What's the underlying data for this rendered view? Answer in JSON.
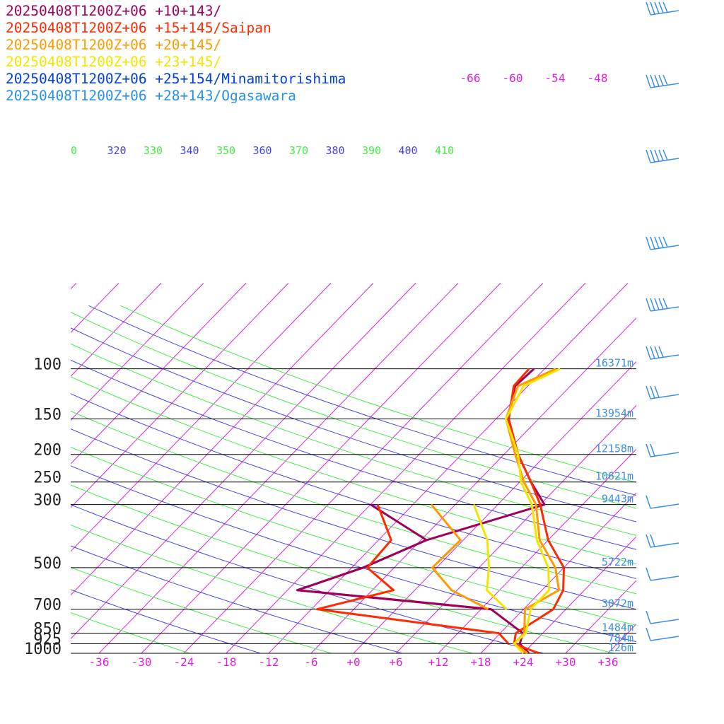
{
  "chart_data": {
    "type": "line",
    "title": "",
    "legend": [
      {
        "label": "20250408T1200Z+06 +10+143/",
        "color": "#a0005a"
      },
      {
        "label": "20250408T1200Z+06 +15+145/Saipan",
        "color": "#ff2a00"
      },
      {
        "label": "20250408T1200Z+06 +20+145/",
        "color": "#ff9a00"
      },
      {
        "label": "20250408T1200Z+06 +23+145/",
        "color": "#f2e600"
      },
      {
        "label": "20250408T1200Z+06 +25+154/Minamitorishima",
        "color": "#0040e0"
      },
      {
        "label": "20250408T1200Z+06 +28+143/Ogasawara",
        "color": "#2890f0"
      }
    ],
    "pressure_levels": [
      {
        "p": 100,
        "label": "100",
        "height": "16371m"
      },
      {
        "p": 150,
        "label": "150",
        "height": "13954m"
      },
      {
        "p": 200,
        "label": "200",
        "height": "12158m"
      },
      {
        "p": 250,
        "label": "250",
        "height": "10621m"
      },
      {
        "p": 300,
        "label": "300",
        "height": "9443m"
      },
      {
        "p": 500,
        "label": "500",
        "height": "5722m"
      },
      {
        "p": 700,
        "label": "700",
        "height": "3072m"
      },
      {
        "p": 850,
        "label": "850",
        "height": "1484m"
      },
      {
        "p": 925,
        "label": "925",
        "height": "784m"
      },
      {
        "p": 1000,
        "label": "1000",
        "height": "126m"
      }
    ],
    "x_ticks": [
      "-36",
      "-30",
      "-24",
      "-18",
      "-12",
      "-6",
      "+0",
      "+6",
      "+12",
      "+18",
      "+24",
      "+30",
      "+36"
    ],
    "x_tick_values": [
      -36,
      -30,
      -24,
      -18,
      -12,
      -6,
      0,
      6,
      12,
      18,
      24,
      30,
      36
    ],
    "upper_isotherm_labels": [
      "-66",
      "-60",
      "-54",
      "-48"
    ],
    "theta_labels": [
      {
        "text": "0",
        "color": "#44ee44"
      },
      {
        "text": "320",
        "color": "#4444ee"
      },
      {
        "text": "330",
        "color": "#44ee44"
      },
      {
        "text": "340",
        "color": "#4444ee"
      },
      {
        "text": "350",
        "color": "#44ee44"
      },
      {
        "text": "360",
        "color": "#4444ee"
      },
      {
        "text": "370",
        "color": "#44ee44"
      },
      {
        "text": "380",
        "color": "#4444ee"
      },
      {
        "text": "390",
        "color": "#44ee44"
      },
      {
        "text": "400",
        "color": "#4444ee"
      },
      {
        "text": "410",
        "color": "#44ee44"
      }
    ],
    "colors": {
      "isotherm": "#e020e0",
      "theta_green": "#44ee44",
      "theta_blue": "#4444ee",
      "height": "#3a8ee8",
      "pressure_label": "#222222"
    },
    "series": [
      {
        "name": "20250408T1200Z+06 +10+143/",
        "temperature": [
          [
            -13.5,
            100
          ],
          [
            -13.8,
            115
          ],
          [
            -10.4,
            150
          ],
          [
            -4,
            200
          ],
          [
            1.6,
            250
          ],
          [
            6.6,
            300
          ],
          [
            -5.2,
            400
          ],
          [
            -10.4,
            500
          ],
          [
            -16.6,
            600
          ],
          [
            13.4,
            700
          ],
          [
            21.2,
            850
          ],
          [
            22.2,
            925
          ],
          [
            24.8,
            1000
          ]
        ],
        "dewpoint": [
          [
            -18,
            300
          ],
          [
            -5.2,
            400
          ],
          [
            -10.4,
            500
          ],
          [
            -16.6,
            600
          ],
          [
            13.4,
            700
          ]
        ]
      },
      {
        "name": "20250408T1200Z+06 +15+145/Saipan",
        "temperature": [
          [
            -14.2,
            100
          ],
          [
            -14,
            115
          ],
          [
            -10.2,
            150
          ],
          [
            -4,
            200
          ],
          [
            1.6,
            250
          ],
          [
            6,
            300
          ],
          [
            12,
            400
          ],
          [
            18,
            500
          ],
          [
            21,
            600
          ],
          [
            22.2,
            700
          ],
          [
            20.2,
            850
          ],
          [
            21.4,
            925
          ],
          [
            26.2,
            1000
          ]
        ],
        "dewpoint": [
          [
            -17,
            300
          ],
          [
            -10.2,
            400
          ],
          [
            -9.8,
            500
          ],
          [
            -3,
            600
          ],
          [
            -11.2,
            700
          ],
          [
            17.8,
            850
          ],
          [
            20.6,
            925
          ]
        ]
      },
      {
        "name": "20250408T1200Z+06 +20+145/",
        "temperature": [
          [
            -10.4,
            100
          ],
          [
            -13.4,
            115
          ],
          [
            -10.6,
            150
          ],
          [
            -4.4,
            200
          ],
          [
            0.6,
            250
          ],
          [
            5.4,
            300
          ],
          [
            10.8,
            400
          ],
          [
            16.8,
            500
          ],
          [
            20.4,
            600
          ],
          [
            18.2,
            700
          ],
          [
            21.4,
            850
          ],
          [
            21.4,
            925
          ],
          [
            24.6,
            1000
          ]
        ],
        "dewpoint": [
          [
            -9.4,
            300
          ],
          [
            -0.4,
            400
          ],
          [
            -0.6,
            500
          ],
          [
            5.2,
            600
          ],
          [
            13,
            700
          ]
        ]
      },
      {
        "name": "20250408T1200Z+06 +23+145/",
        "temperature": [
          [
            -9.8,
            100
          ],
          [
            -12.6,
            115
          ],
          [
            -10.6,
            150
          ],
          [
            -4,
            200
          ],
          [
            0.2,
            250
          ],
          [
            4.8,
            300
          ],
          [
            10.4,
            400
          ],
          [
            15.8,
            500
          ],
          [
            19,
            600
          ],
          [
            19,
            700
          ],
          [
            21.6,
            850
          ],
          [
            21.4,
            925
          ],
          [
            24,
            1000
          ]
        ],
        "dewpoint": [
          [
            -3.4,
            300
          ],
          [
            3.4,
            400
          ],
          [
            7.4,
            500
          ],
          [
            10.2,
            600
          ],
          [
            15.6,
            700
          ]
        ]
      }
    ]
  },
  "wind_barbs": [
    {
      "label": "wind-barb-70hPa"
    },
    {
      "label": "wind-barb-85hPa"
    },
    {
      "label": "wind-barb-100hPa"
    },
    {
      "label": "wind-barb-150hPa"
    },
    {
      "label": "wind-barb-200hPa"
    },
    {
      "label": "wind-barb-250hPa"
    },
    {
      "label": "wind-barb-300hPa"
    },
    {
      "label": "wind-barb-400hPa"
    },
    {
      "label": "wind-barb-500hPa"
    },
    {
      "label": "wind-barb-600hPa"
    },
    {
      "label": "wind-barb-700hPa"
    },
    {
      "label": "wind-barb-850hPa"
    },
    {
      "label": "wind-barb-925hPa"
    }
  ]
}
